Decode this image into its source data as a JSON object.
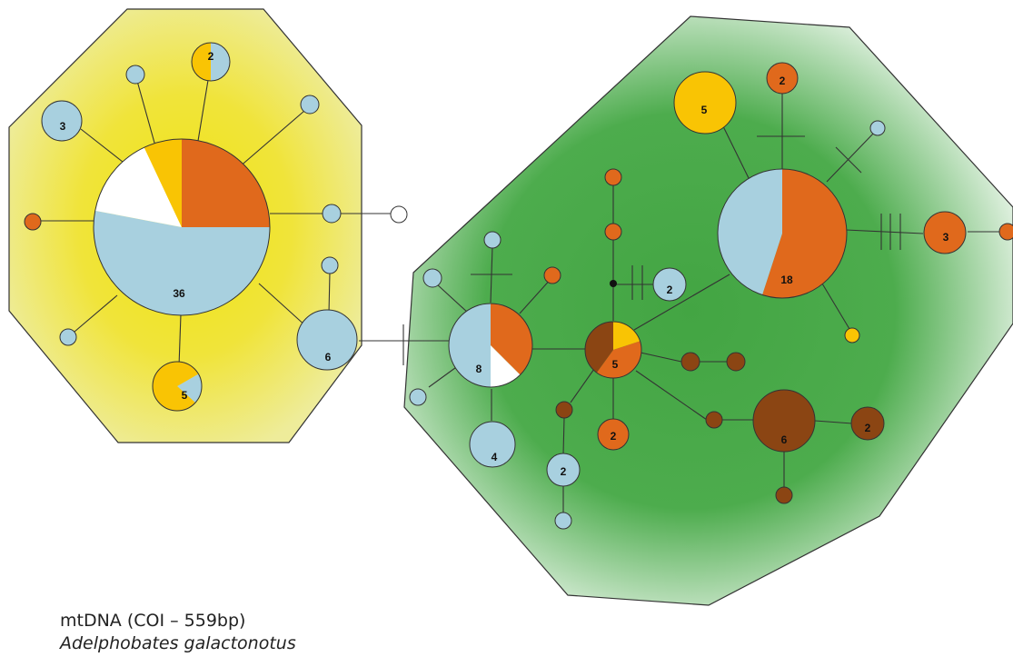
{
  "caption": {
    "marker": "mtDNA (COI – 559bp)",
    "species": "Adelphobates galactonotus"
  },
  "colors": {
    "light_blue": "#a8d0df",
    "orange": "#e0691c",
    "yellow": "#f9c404",
    "brown": "#8b4513",
    "white": "#ffffff",
    "cluster_left_fill": "#f0e32a",
    "cluster_right_fill": "#4ba84b"
  },
  "clusters": [
    {
      "id": "left-cluster",
      "shape": "octagon"
    },
    {
      "id": "right-cluster",
      "shape": "polygon"
    }
  ],
  "node_labels": {
    "n_big": "36",
    "n3": "3",
    "n2_top": "2",
    "n6_left": "6",
    "n5_bottom": "5",
    "n8": "8",
    "n4": "4",
    "n2_blue_low": "2",
    "n2_orange_low": "2",
    "n5_mixed": "5",
    "n2_blue_mid": "2",
    "n6_brown": "6",
    "n2_brown": "2",
    "n18": "18",
    "n3_orange": "3",
    "n2_orange_top": "2",
    "n5_yellow": "5"
  },
  "haplotypes": [
    {
      "id": "n_big",
      "label": "36",
      "composition": [
        [
          "orange",
          0.25
        ],
        [
          "light_blue",
          0.53
        ],
        [
          "white",
          0.15
        ],
        [
          "yellow",
          0.07
        ]
      ]
    },
    {
      "id": "n3",
      "label": "3",
      "composition": [
        [
          "light_blue",
          1
        ]
      ]
    },
    {
      "id": "n2_top",
      "label": "2",
      "composition": [
        [
          "light_blue",
          0.5
        ],
        [
          "yellow",
          0.5
        ]
      ]
    },
    {
      "id": "n6_left",
      "label": "6",
      "composition": [
        [
          "light_blue",
          1
        ]
      ]
    },
    {
      "id": "n5_bottom",
      "label": "5",
      "composition": [
        [
          "light_blue",
          0.2
        ],
        [
          "yellow",
          0.8
        ]
      ]
    },
    {
      "id": "n8",
      "label": "8",
      "composition": [
        [
          "orange",
          0.375
        ],
        [
          "white",
          0.125
        ],
        [
          "light_blue",
          0.5
        ]
      ]
    },
    {
      "id": "n4",
      "label": "4",
      "composition": [
        [
          "light_blue",
          1
        ]
      ]
    },
    {
      "id": "n5_mixed",
      "label": "5",
      "composition": [
        [
          "yellow",
          0.2
        ],
        [
          "orange",
          0.4
        ],
        [
          "brown",
          0.4
        ]
      ]
    },
    {
      "id": "n18",
      "label": "18",
      "composition": [
        [
          "orange",
          0.55
        ],
        [
          "light_blue",
          0.45
        ]
      ]
    },
    {
      "id": "n6_brown",
      "label": "6",
      "composition": [
        [
          "brown",
          1
        ]
      ]
    },
    {
      "id": "n2_brown",
      "label": "2",
      "composition": [
        [
          "brown",
          1
        ]
      ]
    },
    {
      "id": "n3_orange",
      "label": "3",
      "composition": [
        [
          "orange",
          1
        ]
      ]
    },
    {
      "id": "n2_orange_top",
      "label": "2",
      "composition": [
        [
          "orange",
          1
        ]
      ]
    },
    {
      "id": "n5_yellow",
      "label": "5",
      "composition": [
        [
          "yellow",
          1
        ]
      ]
    },
    {
      "id": "n2_orange_low",
      "label": "2",
      "composition": [
        [
          "orange",
          1
        ]
      ]
    },
    {
      "id": "n2_blue_low",
      "label": "2",
      "composition": [
        [
          "light_blue",
          1
        ]
      ]
    },
    {
      "id": "n2_blue_mid",
      "label": "2",
      "composition": [
        [
          "light_blue",
          1
        ]
      ]
    }
  ]
}
